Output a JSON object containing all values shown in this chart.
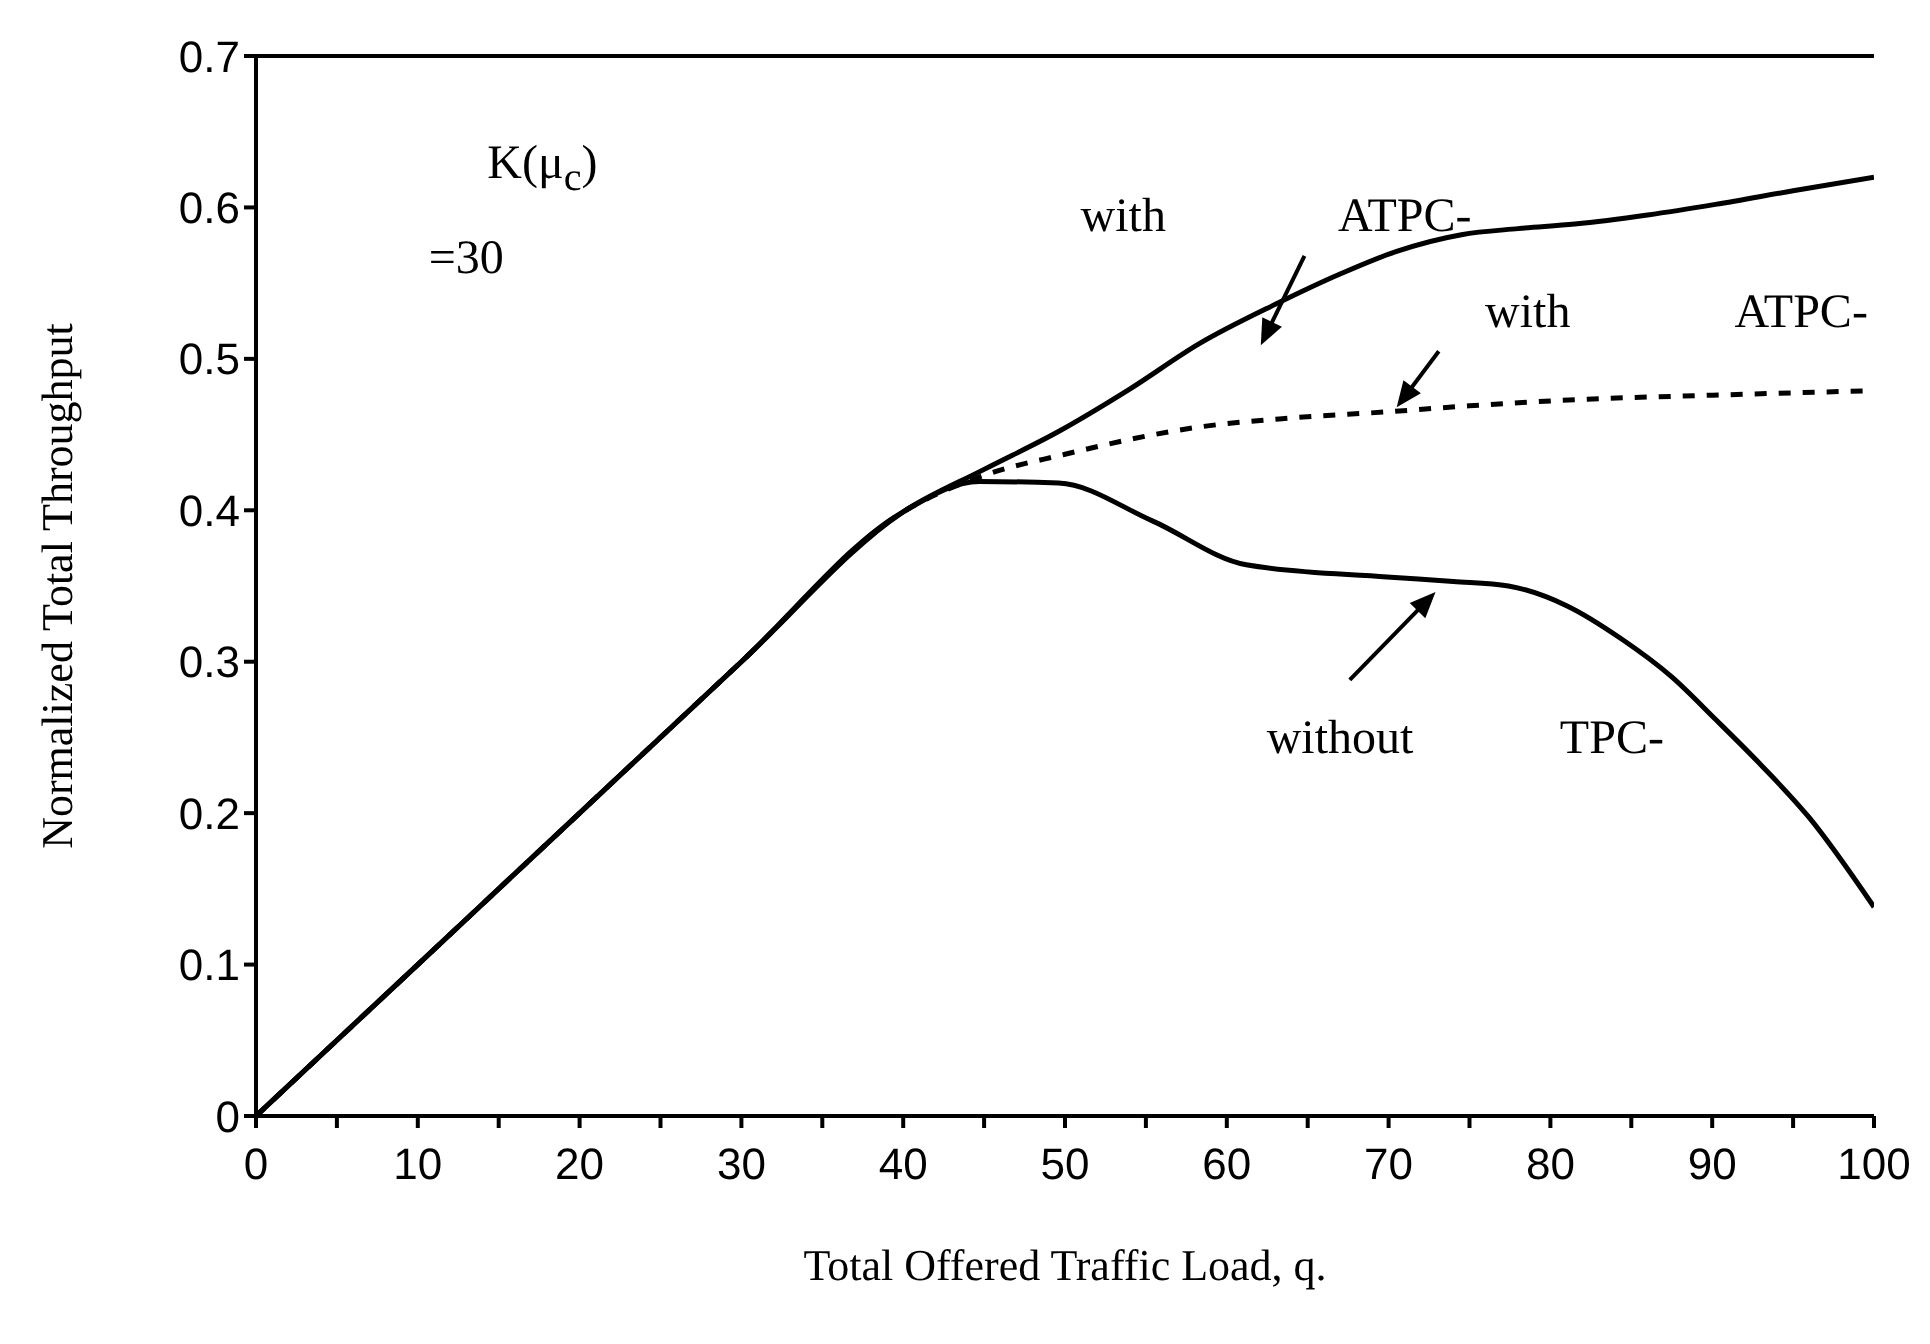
{
  "chart_data": {
    "type": "line",
    "xlabel": "Total Offered Traffic Load, q.",
    "ylabel": "Normalized Total Throughput",
    "xlim": [
      0,
      100
    ],
    "xticks": [
      0,
      {
        "value": 5,
        "label": null
      },
      10,
      {
        "value": 15,
        "label": null
      },
      20,
      {
        "value": 25,
        "label": null
      },
      30,
      {
        "value": 35,
        "label": null
      },
      40,
      {
        "value": 45,
        "label": null
      },
      50,
      {
        "value": 55,
        "label": null
      },
      60,
      {
        "value": 65,
        "label": null
      },
      70,
      {
        "value": 75,
        "label": null
      },
      80,
      {
        "value": 85,
        "label": null
      },
      90,
      {
        "value": 95,
        "label": null
      },
      100
    ],
    "ylim": [
      0,
      0.7
    ],
    "yticks": [
      0,
      0.1,
      0.2,
      0.3,
      0.4,
      0.5,
      0.6,
      0.7
    ],
    "marker": "none",
    "series": [
      {
        "color": "#000000",
        "line_style": "solid",
        "x": [
          0,
          10,
          20,
          30,
          40,
          45,
          49.6,
          54,
          58.3,
          63,
          67,
          70.5,
          74.5,
          78,
          81.5,
          86,
          90.2,
          95,
          100
        ],
        "values": [
          0,
          0.1,
          0.2,
          0.3,
          0.399,
          0.427,
          0.452,
          0.48,
          0.51,
          0.536,
          0.556,
          0.571,
          0.582,
          0.586,
          0.589,
          0.595,
          0.602,
          0.611,
          0.62
        ]
      },
      {
        "color": "#000000",
        "line_style": "dashed",
        "x": [
          0,
          10,
          20,
          30,
          40,
          44.7,
          50,
          58.3,
          64,
          69.9,
          75,
          81.5,
          90,
          100
        ],
        "values": [
          0,
          0.1,
          0.2,
          0.3,
          0.399,
          0.422,
          0.437,
          0.455,
          0.461,
          0.465,
          0.469,
          0.473,
          0.476,
          0.479
        ]
      },
      {
        "color": "#000000",
        "line_style": "solid",
        "x": [
          0,
          10,
          20,
          30,
          40,
          44.7,
          49.6,
          55.4,
          61.2,
          69.9,
          74,
          77.4,
          81,
          84.4,
          87.5,
          90.2,
          93,
          96,
          100
        ],
        "values": [
          0,
          0.1,
          0.2,
          0.3,
          0.399,
          0.419,
          0.418,
          0.393,
          0.364,
          0.356,
          0.353,
          0.35,
          0.337,
          0.315,
          0.29,
          0.262,
          0.232,
          0.197,
          0.138
        ]
      }
    ],
    "annotations": [
      "K(μ$_{c}$)",
      "=30",
      "with",
      "ATPC-",
      "with",
      "ATPC-",
      "without",
      "TPC-"
    ]
  }
}
